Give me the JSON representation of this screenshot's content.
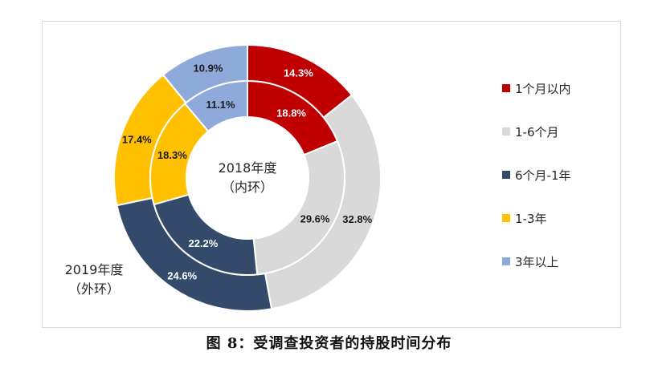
{
  "caption": "图 8：受调查投资者的持股时间分布",
  "chart_data": {
    "type": "pie",
    "categories": [
      "1个月以内",
      "1-6个月",
      "6个月-1年",
      "1-3年",
      "3年以上"
    ],
    "colors": [
      "#c00000",
      "#d9d9d9",
      "#344a6b",
      "#ffc000",
      "#8eaadb"
    ],
    "series": [
      {
        "name": "2019年度",
        "name_line2": "（外环）",
        "ring": "outer",
        "values": [
          14.3,
          32.8,
          24.6,
          17.4,
          10.9
        ],
        "labels": [
          "14.3%",
          "32.8%",
          "24.6%",
          "17.4%",
          "10.9%"
        ]
      },
      {
        "name": "2018年度",
        "name_line2": "（内环）",
        "ring": "inner",
        "values": [
          18.8,
          29.6,
          22.2,
          18.3,
          11.1
        ],
        "labels": [
          "18.8%",
          "29.6%",
          "22.2%",
          "18.3%",
          "11.1%"
        ]
      }
    ],
    "legend_position": "right"
  }
}
